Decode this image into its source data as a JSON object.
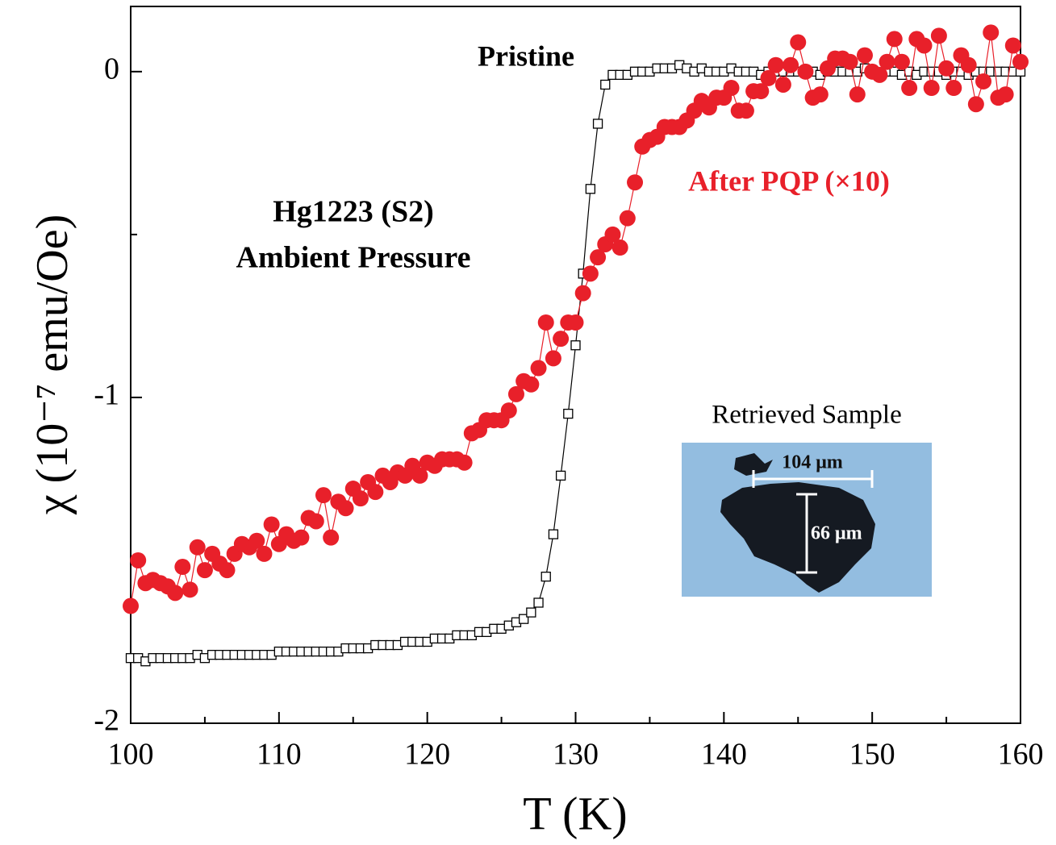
{
  "chart_data": {
    "type": "scatter-line",
    "xlabel": "T (K)",
    "ylabel": "χ (10⁻⁷ emu/Oe)",
    "xlim": [
      100,
      160
    ],
    "xticks": [
      100,
      110,
      120,
      130,
      140,
      150,
      160
    ],
    "xminorticks": [
      105,
      115,
      125,
      135,
      145,
      155
    ],
    "ylim": [
      -2,
      0.2
    ],
    "yticks": [
      -2,
      -1,
      0
    ],
    "yminorticks": [
      -1.5,
      -0.5
    ],
    "x": [
      100,
      100.5,
      101,
      101.5,
      102,
      102.5,
      103,
      103.5,
      104,
      104.5,
      105,
      105.5,
      106,
      106.5,
      107,
      107.5,
      108,
      108.5,
      109,
      109.5,
      110,
      110.5,
      111,
      111.5,
      112,
      112.5,
      113,
      113.5,
      114,
      114.5,
      115,
      115.5,
      116,
      116.5,
      117,
      117.5,
      118,
      118.5,
      119,
      119.5,
      120,
      120.5,
      121,
      121.5,
      122,
      122.5,
      123,
      123.5,
      124,
      124.5,
      125,
      125.5,
      126,
      126.5,
      127,
      127.5,
      128,
      128.5,
      129,
      129.5,
      130,
      130.5,
      131,
      131.5,
      132,
      132.5,
      133,
      133.5,
      134,
      134.5,
      135,
      135.5,
      136,
      136.5,
      137,
      137.5,
      138,
      138.5,
      139,
      139.5,
      140,
      140.5,
      141,
      141.5,
      142,
      142.5,
      143,
      143.5,
      144,
      144.5,
      145,
      145.5,
      146,
      146.5,
      147,
      147.5,
      148,
      148.5,
      149,
      149.5,
      150,
      150.5,
      151,
      151.5,
      152,
      152.5,
      153,
      153.5,
      154,
      154.5,
      155,
      155.5,
      156,
      156.5,
      157,
      157.5,
      158,
      158.5,
      159,
      159.5,
      160
    ],
    "series": [
      {
        "name": "Pristine",
        "color": "#000000",
        "marker": "square",
        "values": [
          -1.8,
          -1.8,
          -1.81,
          -1.8,
          -1.8,
          -1.8,
          -1.8,
          -1.8,
          -1.8,
          -1.79,
          -1.8,
          -1.79,
          -1.79,
          -1.79,
          -1.79,
          -1.79,
          -1.79,
          -1.79,
          -1.79,
          -1.79,
          -1.78,
          -1.78,
          -1.78,
          -1.78,
          -1.78,
          -1.78,
          -1.78,
          -1.78,
          -1.78,
          -1.77,
          -1.77,
          -1.77,
          -1.77,
          -1.76,
          -1.76,
          -1.76,
          -1.76,
          -1.75,
          -1.75,
          -1.75,
          -1.75,
          -1.74,
          -1.74,
          -1.74,
          -1.73,
          -1.73,
          -1.73,
          -1.72,
          -1.72,
          -1.71,
          -1.71,
          -1.7,
          -1.69,
          -1.68,
          -1.66,
          -1.63,
          -1.55,
          -1.42,
          -1.24,
          -1.05,
          -0.84,
          -0.62,
          -0.36,
          -0.16,
          -0.04,
          -0.01,
          -0.01,
          -0.01,
          0,
          0,
          0,
          0.01,
          0.01,
          0.01,
          0.02,
          0.01,
          0,
          0.01,
          0,
          0,
          0,
          0.01,
          0,
          0,
          0,
          -0.01,
          0,
          0,
          0,
          0,
          0,
          0,
          0,
          -0.01,
          0,
          0,
          0,
          0,
          0,
          0.01,
          0,
          -0.01,
          0,
          0,
          -0.01,
          0,
          -0.01,
          0,
          0,
          0,
          -0.01,
          0,
          0,
          -0.01,
          0,
          0,
          0,
          0,
          0,
          0,
          0
        ]
      },
      {
        "name": "After PQP (×10)",
        "color": "#e8202a",
        "marker": "circle",
        "values": [
          -1.64,
          -1.5,
          -1.57,
          -1.56,
          -1.57,
          -1.58,
          -1.6,
          -1.52,
          -1.59,
          -1.46,
          -1.53,
          -1.48,
          -1.51,
          -1.53,
          -1.48,
          -1.45,
          -1.46,
          -1.44,
          -1.48,
          -1.39,
          -1.45,
          -1.42,
          -1.44,
          -1.43,
          -1.37,
          -1.38,
          -1.3,
          -1.43,
          -1.32,
          -1.34,
          -1.28,
          -1.31,
          -1.26,
          -1.29,
          -1.24,
          -1.26,
          -1.23,
          -1.24,
          -1.21,
          -1.24,
          -1.2,
          -1.21,
          -1.19,
          -1.19,
          -1.19,
          -1.2,
          -1.11,
          -1.1,
          -1.07,
          -1.07,
          -1.07,
          -1.04,
          -0.99,
          -0.95,
          -0.96,
          -0.91,
          -0.77,
          -0.88,
          -0.82,
          -0.77,
          -0.77,
          -0.68,
          -0.62,
          -0.57,
          -0.53,
          -0.5,
          -0.54,
          -0.45,
          -0.34,
          -0.23,
          -0.21,
          -0.2,
          -0.17,
          -0.17,
          -0.17,
          -0.15,
          -0.12,
          -0.09,
          -0.11,
          -0.08,
          -0.08,
          -0.05,
          -0.12,
          -0.12,
          -0.06,
          -0.06,
          -0.02,
          0.02,
          -0.04,
          0.02,
          0.09,
          0,
          -0.08,
          -0.07,
          0.01,
          0.04,
          0.04,
          0.03,
          -0.07,
          0.05,
          0,
          -0.01,
          0.03,
          0.1,
          0.03,
          -0.05,
          0.1,
          0.08,
          -0.05,
          0.11,
          0.01,
          -0.05,
          0.05,
          0.02,
          -0.1,
          -0.03,
          0.12,
          -0.08,
          -0.07,
          0.08,
          0.03
        ]
      }
    ],
    "annotations": [
      "Hg1223 (S2)",
      "Ambient Pressure"
    ],
    "inset": {
      "title": "Retrieved Sample",
      "width_label": "104 μm",
      "height_label": "66 μm"
    }
  }
}
